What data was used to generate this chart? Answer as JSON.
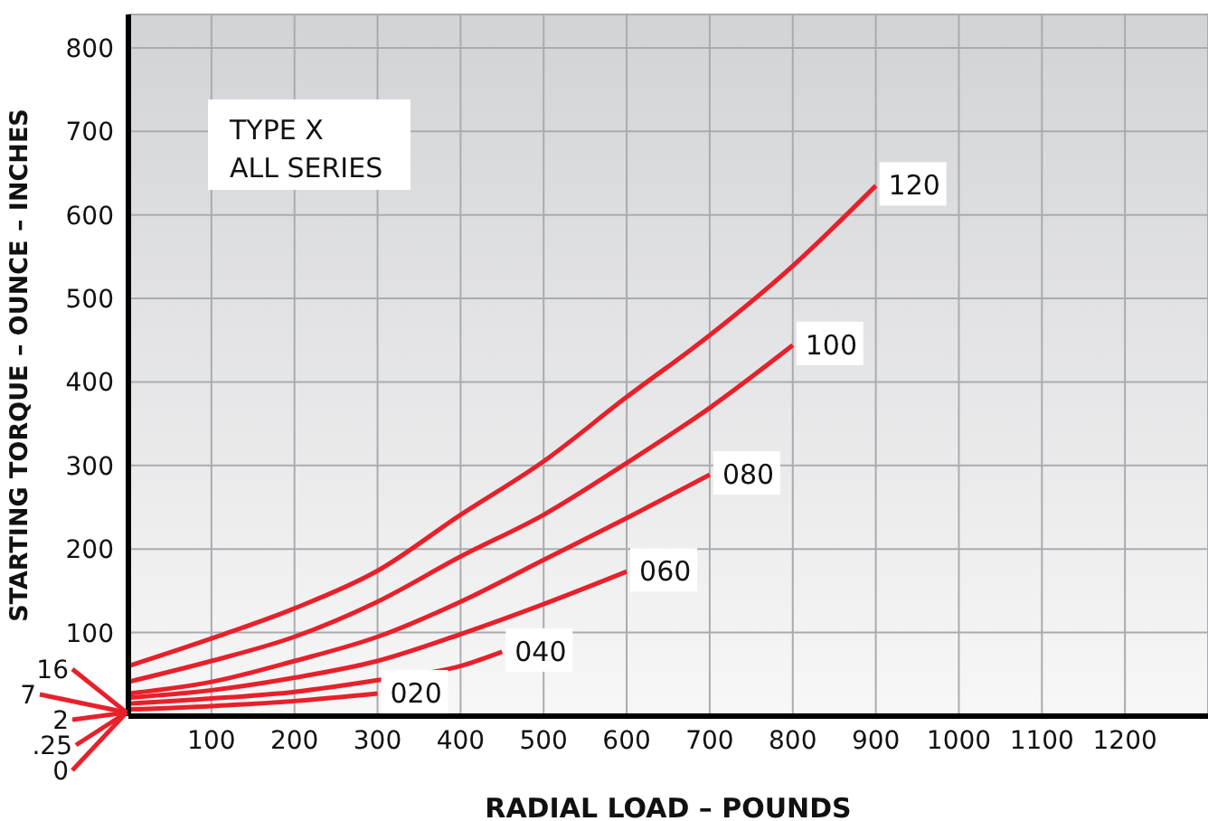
{
  "chart_data": {
    "type": "line",
    "title": "TYPE X",
    "subtitle": "ALL SERIES",
    "xlabel": "RADIAL LOAD – POUNDS",
    "ylabel": "STARTING TORQUE – OUNCE – INCHES",
    "xlim": [
      0,
      1300
    ],
    "xticks": [
      {
        "value": 0,
        "label": null
      },
      100,
      200,
      300,
      400,
      500,
      600,
      700,
      800,
      900,
      1000,
      1100,
      1200
    ],
    "ylim": [
      0,
      840
    ],
    "yticks": [
      {
        "value": 0,
        "label": null
      },
      100,
      200,
      300,
      400,
      500,
      600,
      700,
      800
    ],
    "grid": true,
    "legend": false,
    "marker": "none",
    "line_style": "solid",
    "annotations": [
      "16",
      "7",
      "2",
      ".25",
      "0"
    ],
    "series": [
      {
        "name": "120",
        "color": "#e8202a",
        "x": [
          0,
          100,
          200,
          300,
          400,
          500,
          600,
          700,
          800,
          900
        ],
        "values": [
          60,
          93,
          129,
          174,
          241,
          305,
          382,
          456,
          539,
          635
        ]
      },
      {
        "name": "100",
        "color": "#e8202a",
        "x": [
          0,
          100,
          200,
          300,
          400,
          500,
          600,
          700,
          800
        ],
        "values": [
          41,
          66,
          95,
          137,
          191,
          241,
          303,
          369,
          444
        ]
      },
      {
        "name": "080",
        "color": "#e8202a",
        "x": [
          0,
          100,
          200,
          300,
          400,
          500,
          600,
          700
        ],
        "values": [
          27,
          41,
          66,
          95,
          137,
          187,
          237,
          289
        ]
      },
      {
        "name": "060",
        "color": "#e8202a",
        "x": [
          0,
          100,
          200,
          300,
          400,
          500,
          600
        ],
        "values": [
          22,
          31,
          46,
          66,
          98,
          134,
          173
        ]
      },
      {
        "name": "040",
        "color": "#e8202a",
        "x": [
          0,
          100,
          200,
          300,
          400,
          450
        ],
        "values": [
          15,
          21,
          29,
          43,
          60,
          77
        ]
      },
      {
        "name": "020",
        "color": "#e8202a",
        "x": [
          0,
          100,
          200,
          300
        ],
        "values": [
          8,
          12,
          18,
          27
        ]
      }
    ]
  }
}
